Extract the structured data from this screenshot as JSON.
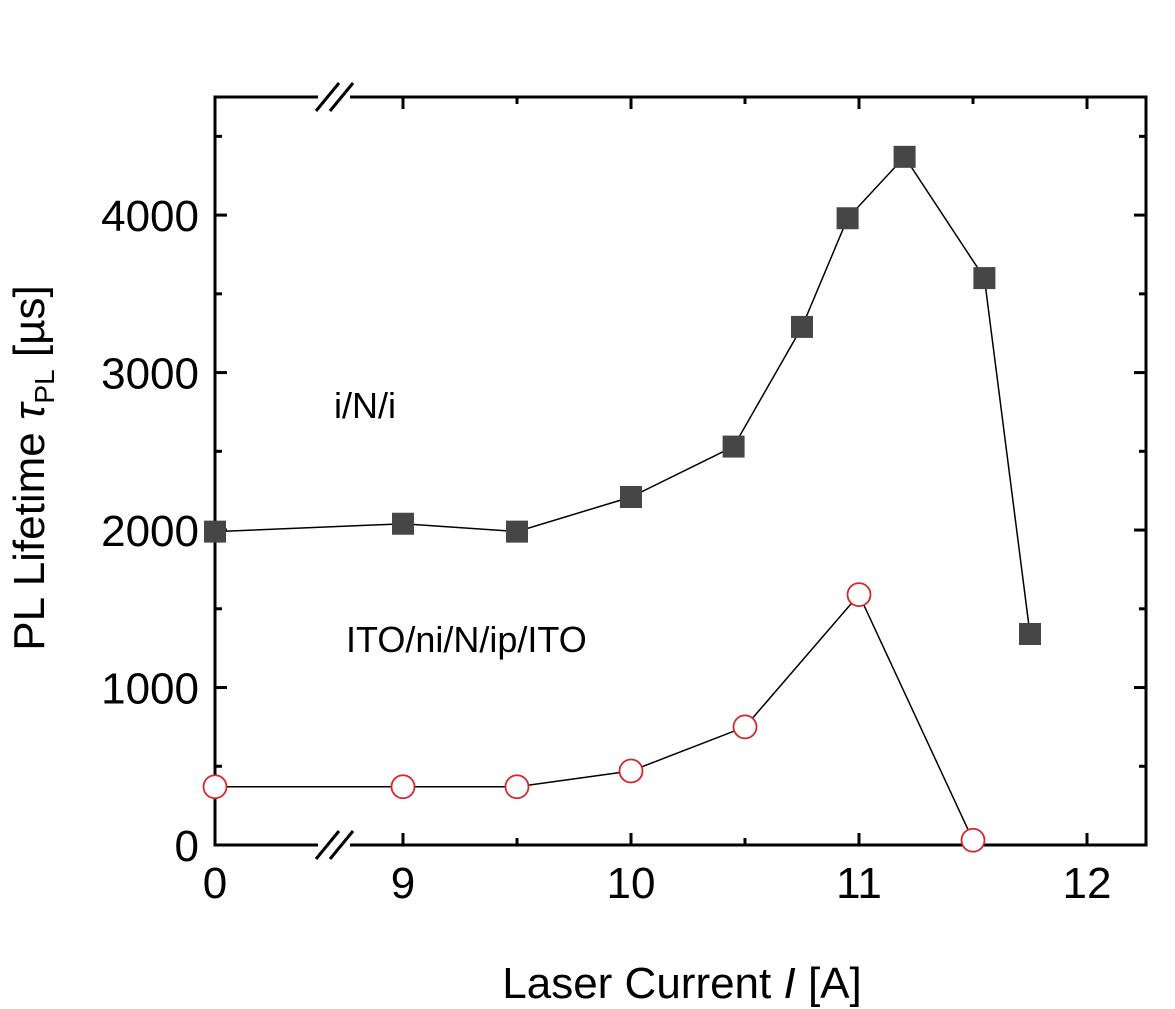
{
  "chart_data": {
    "type": "scatter",
    "xlabel": {
      "prefix": "Laser Current ",
      "variable": "I",
      "suffix": " [A]"
    },
    "ylabel": {
      "prefix": "PL Lifetime ",
      "symbol": "τ",
      "subscript": "PL",
      "suffix": "  [µs]"
    },
    "xticks": [
      {
        "value": 0,
        "label": "0"
      },
      {
        "value": 9,
        "label": "9"
      },
      {
        "value": 10,
        "label": "10"
      },
      {
        "value": 11,
        "label": "11"
      },
      {
        "value": 12,
        "label": "12"
      }
    ],
    "yticks": [
      {
        "value": 0,
        "label": "0"
      },
      {
        "value": 1000,
        "label": "1000"
      },
      {
        "value": 2000,
        "label": "2000"
      },
      {
        "value": 3000,
        "label": "3000"
      },
      {
        "value": 4000,
        "label": "4000"
      }
    ],
    "x_axis_break": {
      "between": [
        0,
        9
      ]
    },
    "ylim": [
      0,
      4750
    ],
    "grid": false,
    "series": [
      {
        "marker": "filled-square",
        "color": "#464646",
        "points": [
          {
            "x": 0,
            "y": 1990
          },
          {
            "x": 9.0,
            "y": 2040
          },
          {
            "x": 9.5,
            "y": 1990
          },
          {
            "x": 10.0,
            "y": 2210
          },
          {
            "x": 10.45,
            "y": 2530
          },
          {
            "x": 10.75,
            "y": 3290
          },
          {
            "x": 10.95,
            "y": 3980
          },
          {
            "x": 11.2,
            "y": 4370
          },
          {
            "x": 11.55,
            "y": 3600
          },
          {
            "x": 11.75,
            "y": 1340
          }
        ]
      },
      {
        "marker": "open-circle",
        "color": "#d62728",
        "points": [
          {
            "x": 0,
            "y": 370
          },
          {
            "x": 9.0,
            "y": 370
          },
          {
            "x": 9.5,
            "y": 370
          },
          {
            "x": 10.0,
            "y": 470
          },
          {
            "x": 10.5,
            "y": 750
          },
          {
            "x": 11.0,
            "y": 1590
          },
          {
            "x": 11.5,
            "y": 30
          }
        ]
      }
    ],
    "annotations": [
      {
        "text": "i/N/i"
      },
      {
        "text": "ITO/ni/N/ip/ITO"
      }
    ]
  }
}
